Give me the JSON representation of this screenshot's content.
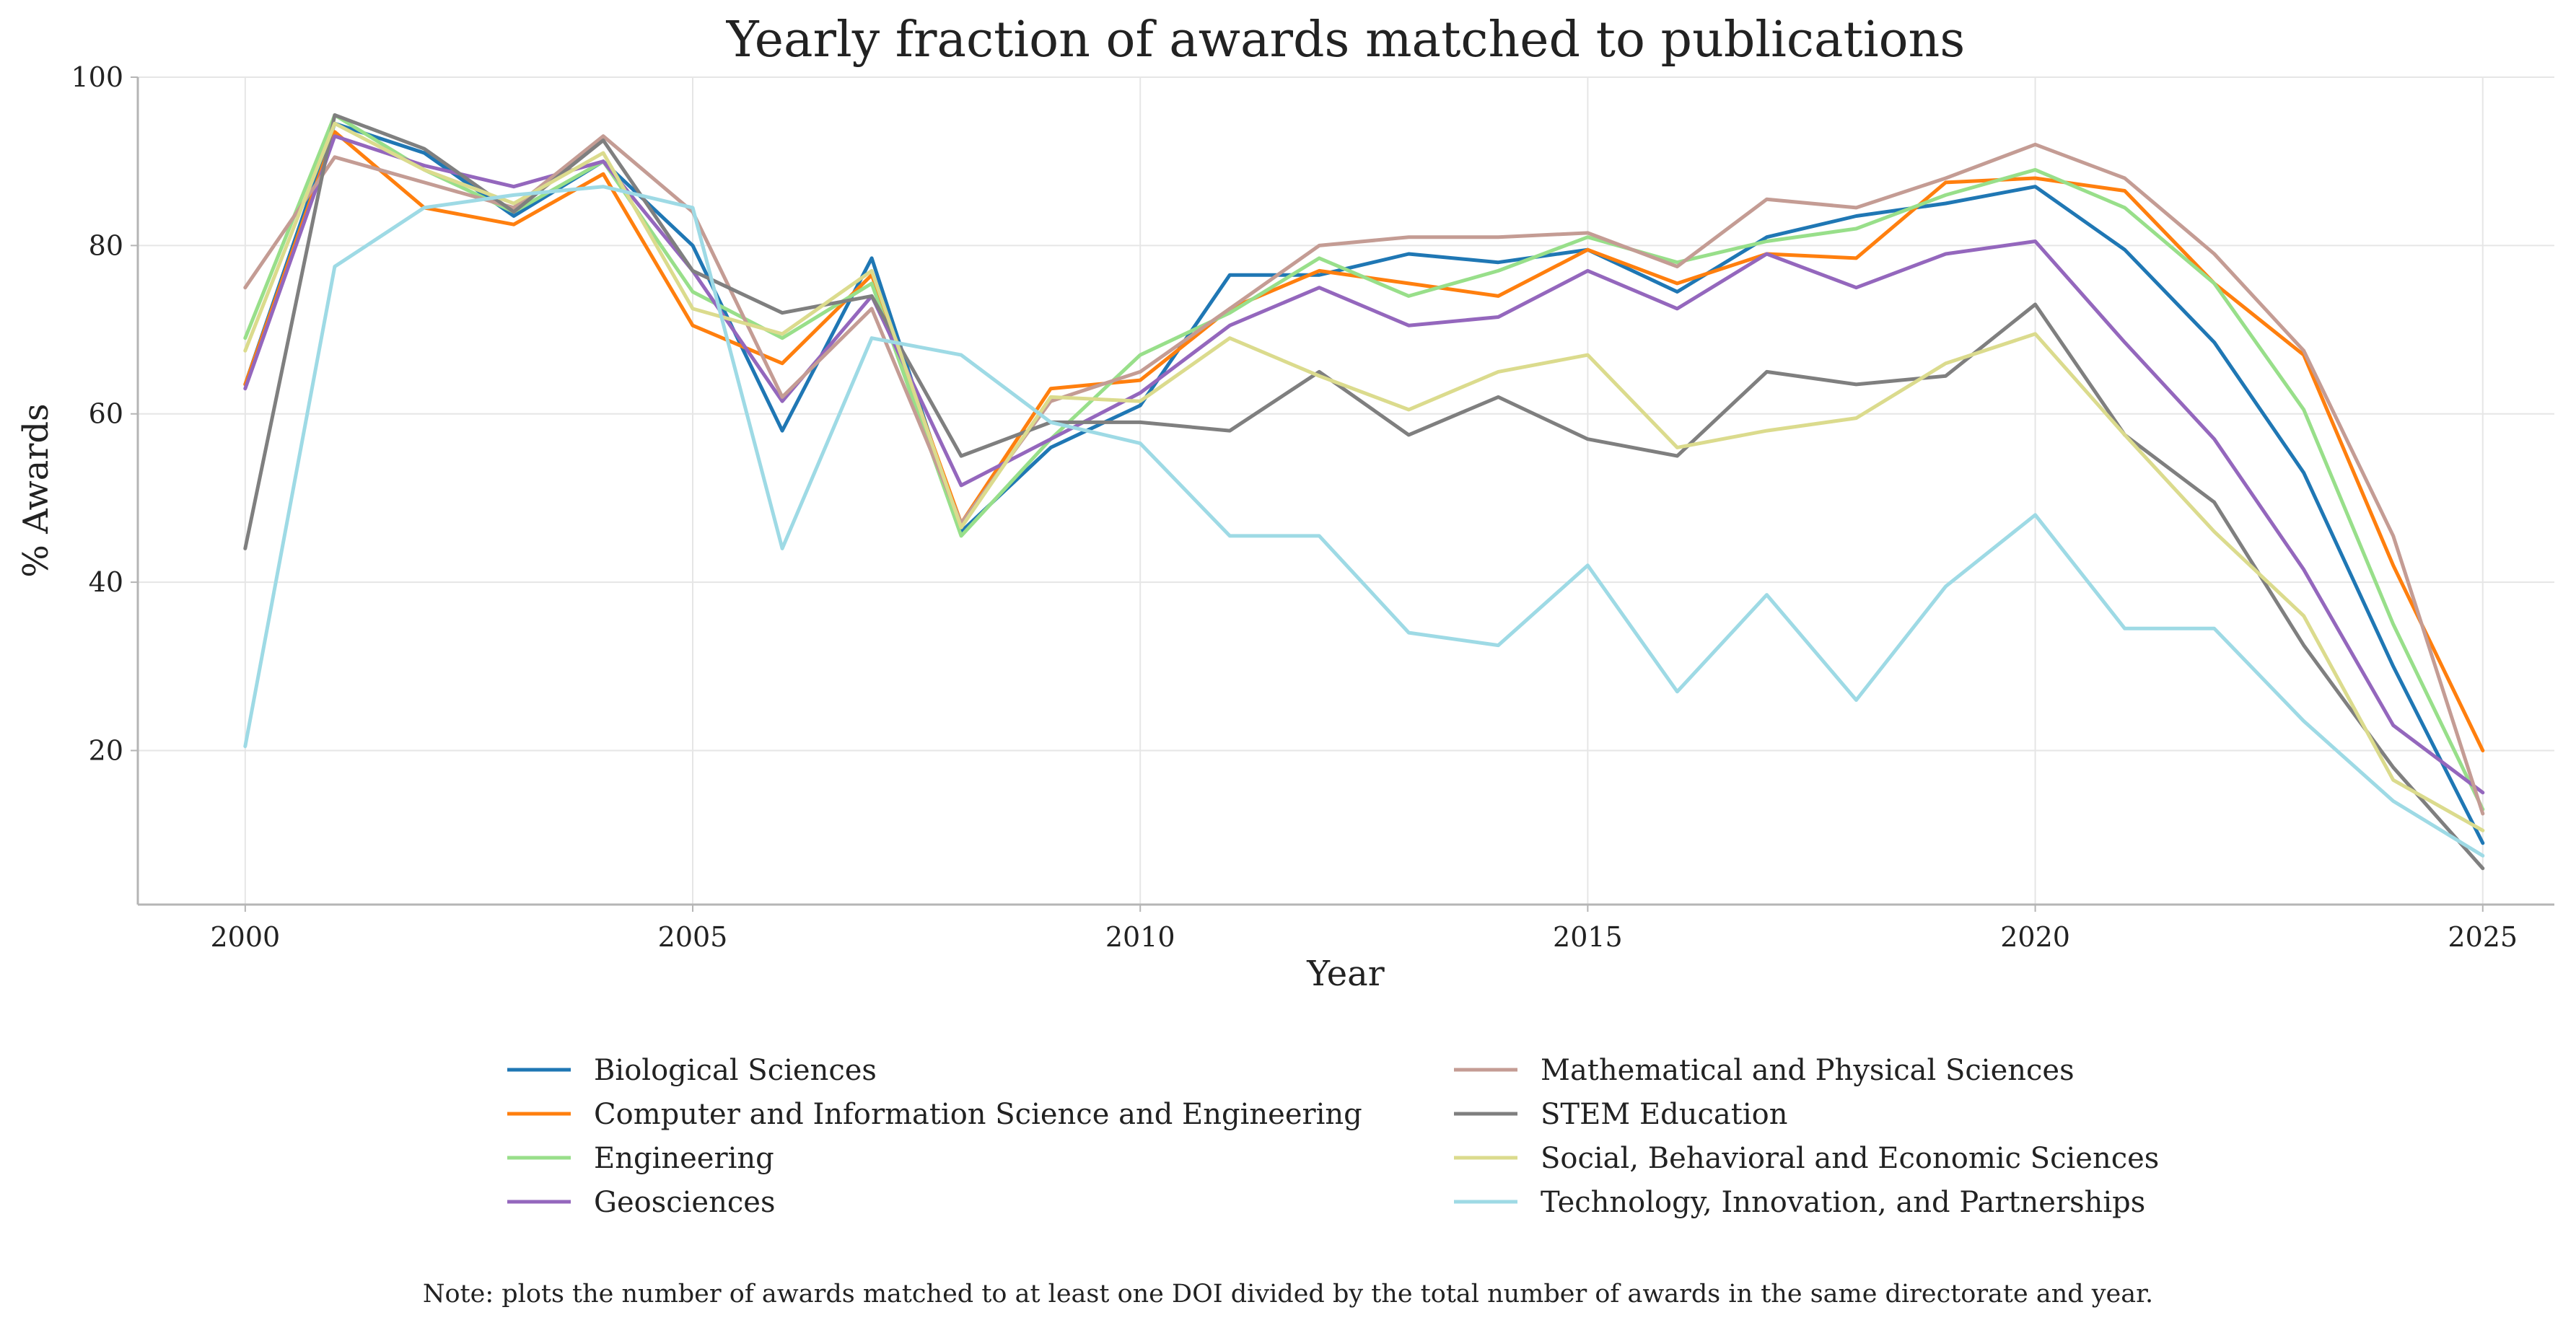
{
  "chart_data": {
    "type": "line",
    "title": "Yearly fraction of awards matched to publications",
    "xlabel": "Year",
    "ylabel": "% Awards",
    "xlim": [
      1998.8,
      2025.8
    ],
    "ylim": [
      1.7,
      100
    ],
    "xticks": [
      2000,
      2005,
      2010,
      2015,
      2020,
      2025
    ],
    "yticks": [
      20,
      40,
      60,
      80,
      100
    ],
    "x": [
      2000,
      2001,
      2002,
      2003,
      2004,
      2005,
      2006,
      2007,
      2008,
      2009,
      2010,
      2011,
      2012,
      2013,
      2014,
      2015,
      2016,
      2017,
      2018,
      2019,
      2020,
      2021,
      2022,
      2023,
      2024,
      2025
    ],
    "grid": true,
    "legend_position": "bottom",
    "series": [
      {
        "name": "Biological Sciences",
        "color": "#1f77b4",
        "values": [
          63.5,
          94.5,
          91,
          83.5,
          90,
          80,
          58,
          78.5,
          46,
          56,
          61,
          76.5,
          76.5,
          79,
          78,
          79.5,
          74.5,
          81,
          83.5,
          85,
          87,
          79.5,
          68.5,
          53,
          30,
          9
        ]
      },
      {
        "name": "Computer and Information Science and Engineering",
        "color": "#ff7f0e",
        "values": [
          63.5,
          93.5,
          84.5,
          82.5,
          88.5,
          70.5,
          66,
          76.5,
          47,
          63,
          64,
          72.5,
          77,
          75.5,
          74,
          79.5,
          75.5,
          79,
          78.5,
          87.5,
          88,
          86.5,
          75.5,
          67,
          42,
          20
        ]
      },
      {
        "name": "Engineering",
        "color": "#98df8a",
        "values": [
          69,
          95.5,
          89,
          84,
          90,
          74.5,
          69,
          75.5,
          45.5,
          57,
          67,
          72,
          78.5,
          74,
          77,
          81,
          78,
          80.5,
          82,
          86,
          89,
          84.5,
          75.5,
          60.5,
          35,
          13
        ]
      },
      {
        "name": "Geosciences",
        "color": "#9467bd",
        "values": [
          63,
          93,
          89.5,
          87,
          90,
          77,
          61.5,
          74,
          51.5,
          57,
          62.5,
          70.5,
          75,
          70.5,
          71.5,
          77,
          72.5,
          79,
          75,
          79,
          80.5,
          68.5,
          57,
          41.5,
          23,
          15
        ]
      },
      {
        "name": "Mathematical and Physical Sciences",
        "color": "#c49c94",
        "values": [
          75,
          90.5,
          87.5,
          84.5,
          93,
          84,
          62,
          72.5,
          47,
          61.5,
          65,
          72.5,
          80,
          81,
          81,
          81.5,
          77.5,
          85.5,
          84.5,
          88,
          92,
          88,
          79,
          67.5,
          45.5,
          12.5
        ]
      },
      {
        "name": "STEM Education",
        "color": "#7f7f7f",
        "values": [
          44,
          95.5,
          91.5,
          84,
          92.5,
          77,
          72,
          74,
          55,
          59,
          59,
          58,
          65,
          57.5,
          62,
          57,
          55,
          65,
          63.5,
          64.5,
          73,
          57.5,
          49.5,
          32.5,
          18,
          6
        ]
      },
      {
        "name": "Social, Behavioral and Economic Sciences",
        "color": "#dbdb8d",
        "values": [
          67.5,
          94.5,
          89,
          85,
          91,
          72.5,
          69.5,
          77,
          46.5,
          62,
          61.5,
          69,
          64.5,
          60.5,
          65,
          67,
          56,
          58,
          59.5,
          66,
          69.5,
          57.5,
          46,
          36,
          16.5,
          10.5
        ]
      },
      {
        "name": "Technology, Innovation, and Partnerships",
        "color": "#9edae5",
        "values": [
          20.5,
          77.5,
          84.5,
          86,
          87,
          84.5,
          44,
          69,
          67,
          59,
          56.5,
          45.5,
          45.5,
          34,
          32.5,
          42,
          27,
          38.5,
          26,
          39.5,
          48,
          34.5,
          34.5,
          23.5,
          14,
          7.5
        ]
      }
    ]
  },
  "note": "Note: plots the number of awards matched to at least one DOI divided by the total number of awards in the same directorate and year."
}
